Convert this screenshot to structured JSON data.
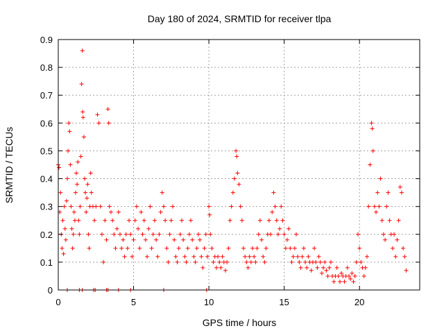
{
  "chart_data": {
    "type": "scatter",
    "title": "Day 180 of 2024, SRMTID for receiver tlpa",
    "xlabel": "GPS time / hours",
    "ylabel": "SRMTID / TECUs",
    "xlim": [
      0,
      24
    ],
    "ylim": [
      0,
      0.9
    ],
    "xticks": [
      0,
      5,
      10,
      15,
      20
    ],
    "yticks": [
      0,
      0.1,
      0.2,
      0.3,
      0.4,
      0.5,
      0.6,
      0.7,
      0.8,
      0.9
    ],
    "grid": true,
    "marker": "+",
    "color": "#ff0000",
    "series": [
      {
        "name": "SRMTID",
        "points": [
          [
            0.0,
            0.45
          ],
          [
            0.05,
            0.44
          ],
          [
            0.1,
            0.28
          ],
          [
            0.15,
            0.35
          ],
          [
            0.2,
            0.2
          ],
          [
            0.25,
            0.15
          ],
          [
            0.3,
            0.25
          ],
          [
            0.35,
            0.13
          ],
          [
            0.4,
            0.3
          ],
          [
            0.45,
            0.22
          ],
          [
            0.5,
            0.18
          ],
          [
            0.55,
            0.32
          ],
          [
            0.6,
            0.4
          ],
          [
            0.65,
            0.5
          ],
          [
            0.7,
            0.6
          ],
          [
            0.75,
            0.57
          ],
          [
            0.8,
            0.45
          ],
          [
            0.85,
            0.3
          ],
          [
            0.9,
            0.22
          ],
          [
            0.95,
            0.15
          ],
          [
            1.0,
            0.2
          ],
          [
            1.05,
            0.28
          ],
          [
            1.1,
            0.25
          ],
          [
            1.15,
            0.35
          ],
          [
            1.2,
            0.42
          ],
          [
            1.25,
            0.38
          ],
          [
            1.3,
            0.46
          ],
          [
            1.35,
            0.25
          ],
          [
            1.4,
            0.2
          ],
          [
            1.45,
            0.3
          ],
          [
            1.5,
            0.48
          ],
          [
            1.55,
            0.74
          ],
          [
            1.6,
            0.86
          ],
          [
            1.62,
            0.64
          ],
          [
            1.65,
            0.62
          ],
          [
            1.7,
            0.55
          ],
          [
            1.75,
            0.4
          ],
          [
            1.8,
            0.35
          ],
          [
            1.85,
            0.28
          ],
          [
            1.9,
            0.33
          ],
          [
            1.95,
            0.38
          ],
          [
            2.0,
            0.2
          ],
          [
            2.05,
            0.15
          ],
          [
            2.1,
            0.3
          ],
          [
            2.15,
            0.42
          ],
          [
            2.2,
            0.35
          ],
          [
            2.3,
            0.3
          ],
          [
            2.4,
            0.25
          ],
          [
            2.5,
            0.3
          ],
          [
            2.6,
            0.63
          ],
          [
            2.7,
            0.6
          ],
          [
            2.8,
            0.3
          ],
          [
            2.9,
            0.2
          ],
          [
            3.0,
            0.1
          ],
          [
            3.1,
            0.25
          ],
          [
            3.2,
            0.18
          ],
          [
            3.3,
            0.65
          ],
          [
            3.35,
            0.6
          ],
          [
            3.4,
            0.3
          ],
          [
            3.5,
            0.28
          ],
          [
            3.6,
            0.25
          ],
          [
            3.7,
            0.2
          ],
          [
            3.8,
            0.15
          ],
          [
            3.9,
            0.22
          ],
          [
            4.0,
            0.28
          ],
          [
            4.1,
            0.2
          ],
          [
            4.2,
            0.15
          ],
          [
            4.3,
            0.18
          ],
          [
            4.4,
            0.12
          ],
          [
            4.5,
            0.2
          ],
          [
            4.6,
            0.15
          ],
          [
            4.7,
            0.25
          ],
          [
            4.8,
            0.2
          ],
          [
            4.9,
            0.12
          ],
          [
            5.0,
            0.18
          ],
          [
            5.1,
            0.25
          ],
          [
            5.2,
            0.3
          ],
          [
            5.3,
            0.22
          ],
          [
            5.4,
            0.15
          ],
          [
            5.5,
            0.28
          ],
          [
            5.6,
            0.2
          ],
          [
            5.7,
            0.25
          ],
          [
            5.8,
            0.18
          ],
          [
            5.9,
            0.12
          ],
          [
            6.0,
            0.22
          ],
          [
            6.1,
            0.3
          ],
          [
            6.2,
            0.15
          ],
          [
            6.3,
            0.2
          ],
          [
            6.4,
            0.25
          ],
          [
            6.5,
            0.18
          ],
          [
            6.6,
            0.12
          ],
          [
            6.7,
            0.2
          ],
          [
            6.8,
            0.28
          ],
          [
            6.9,
            0.35
          ],
          [
            7.0,
            0.3
          ],
          [
            7.1,
            0.25
          ],
          [
            7.2,
            0.15
          ],
          [
            7.3,
            0.1
          ],
          [
            7.4,
            0.2
          ],
          [
            7.5,
            0.25
          ],
          [
            7.6,
            0.3
          ],
          [
            7.7,
            0.18
          ],
          [
            7.8,
            0.12
          ],
          [
            7.9,
            0.1
          ],
          [
            8.0,
            0.15
          ],
          [
            8.1,
            0.2
          ],
          [
            8.2,
            0.25
          ],
          [
            8.3,
            0.18
          ],
          [
            8.4,
            0.12
          ],
          [
            8.5,
            0.1
          ],
          [
            8.6,
            0.15
          ],
          [
            8.7,
            0.2
          ],
          [
            8.8,
            0.25
          ],
          [
            8.9,
            0.18
          ],
          [
            9.0,
            0.12
          ],
          [
            9.1,
            0.1
          ],
          [
            9.2,
            0.15
          ],
          [
            9.3,
            0.2
          ],
          [
            9.4,
            0.18
          ],
          [
            9.5,
            0.12
          ],
          [
            9.6,
            0.08
          ],
          [
            9.7,
            0.15
          ],
          [
            9.8,
            0.2
          ],
          [
            9.9,
            0.12
          ],
          [
            10.0,
            0.3
          ],
          [
            10.05,
            0.27
          ],
          [
            10.1,
            0.2
          ],
          [
            10.2,
            0.15
          ],
          [
            10.3,
            0.1
          ],
          [
            10.4,
            0.12
          ],
          [
            10.5,
            0.08
          ],
          [
            10.6,
            0.12
          ],
          [
            10.7,
            0.1
          ],
          [
            10.8,
            0.08
          ],
          [
            10.9,
            0.12
          ],
          [
            11.0,
            0.1
          ],
          [
            11.1,
            0.07
          ],
          [
            11.2,
            0.1
          ],
          [
            11.3,
            0.15
          ],
          [
            11.4,
            0.25
          ],
          [
            11.5,
            0.3
          ],
          [
            11.6,
            0.35
          ],
          [
            11.7,
            0.4
          ],
          [
            11.8,
            0.5
          ],
          [
            11.85,
            0.48
          ],
          [
            11.9,
            0.42
          ],
          [
            12.0,
            0.38
          ],
          [
            12.1,
            0.3
          ],
          [
            12.2,
            0.25
          ],
          [
            12.3,
            0.15
          ],
          [
            12.4,
            0.12
          ],
          [
            12.5,
            0.1
          ],
          [
            12.6,
            0.08
          ],
          [
            12.7,
            0.12
          ],
          [
            12.8,
            0.1
          ],
          [
            12.9,
            0.15
          ],
          [
            13.0,
            0.12
          ],
          [
            13.1,
            0.1
          ],
          [
            13.2,
            0.15
          ],
          [
            13.3,
            0.2
          ],
          [
            13.4,
            0.25
          ],
          [
            13.5,
            0.18
          ],
          [
            13.6,
            0.12
          ],
          [
            13.7,
            0.1
          ],
          [
            13.8,
            0.15
          ],
          [
            13.9,
            0.2
          ],
          [
            14.0,
            0.25
          ],
          [
            14.1,
            0.2
          ],
          [
            14.2,
            0.28
          ],
          [
            14.3,
            0.35
          ],
          [
            14.4,
            0.3
          ],
          [
            14.5,
            0.25
          ],
          [
            14.6,
            0.2
          ],
          [
            14.7,
            0.22
          ],
          [
            14.8,
            0.3
          ],
          [
            14.9,
            0.25
          ],
          [
            15.0,
            0.2
          ],
          [
            15.1,
            0.15
          ],
          [
            15.2,
            0.18
          ],
          [
            15.3,
            0.22
          ],
          [
            15.4,
            0.15
          ],
          [
            15.5,
            0.1
          ],
          [
            15.6,
            0.12
          ],
          [
            15.7,
            0.15
          ],
          [
            15.8,
            0.2
          ],
          [
            15.9,
            0.12
          ],
          [
            16.0,
            0.1
          ],
          [
            16.1,
            0.08
          ],
          [
            16.2,
            0.12
          ],
          [
            16.3,
            0.15
          ],
          [
            16.4,
            0.1
          ],
          [
            16.5,
            0.08
          ],
          [
            16.6,
            0.12
          ],
          [
            16.7,
            0.1
          ],
          [
            16.8,
            0.07
          ],
          [
            16.9,
            0.1
          ],
          [
            17.0,
            0.15
          ],
          [
            17.1,
            0.1
          ],
          [
            17.2,
            0.08
          ],
          [
            17.3,
            0.12
          ],
          [
            17.4,
            0.1
          ],
          [
            17.5,
            0.06
          ],
          [
            17.6,
            0.08
          ],
          [
            17.7,
            0.1
          ],
          [
            17.8,
            0.07
          ],
          [
            17.9,
            0.05
          ],
          [
            18.0,
            0.08
          ],
          [
            18.1,
            0.1
          ],
          [
            18.2,
            0.05
          ],
          [
            18.3,
            0.03
          ],
          [
            18.4,
            0.05
          ],
          [
            18.5,
            0.08
          ],
          [
            18.6,
            0.05
          ],
          [
            18.7,
            0.03
          ],
          [
            18.8,
            0.06
          ],
          [
            18.9,
            0.05
          ],
          [
            19.0,
            0.03
          ],
          [
            19.1,
            0.05
          ],
          [
            19.2,
            0.08
          ],
          [
            19.3,
            0.05
          ],
          [
            19.4,
            0.04
          ],
          [
            19.5,
            0.06
          ],
          [
            19.6,
            0.03
          ],
          [
            19.7,
            0.05
          ],
          [
            19.8,
            0.1
          ],
          [
            19.9,
            0.2
          ],
          [
            20.0,
            0.15
          ],
          [
            20.1,
            0.1
          ],
          [
            20.2,
            0.08
          ],
          [
            20.3,
            0.05
          ],
          [
            20.4,
            0.08
          ],
          [
            20.5,
            0.12
          ],
          [
            20.6,
            0.3
          ],
          [
            20.7,
            0.45
          ],
          [
            20.8,
            0.6
          ],
          [
            20.85,
            0.58
          ],
          [
            20.9,
            0.5
          ],
          [
            21.0,
            0.3
          ],
          [
            21.1,
            0.28
          ],
          [
            21.2,
            0.35
          ],
          [
            21.3,
            0.3
          ],
          [
            21.4,
            0.4
          ],
          [
            21.5,
            0.25
          ],
          [
            21.6,
            0.2
          ],
          [
            21.7,
            0.18
          ],
          [
            21.8,
            0.3
          ],
          [
            21.9,
            0.35
          ],
          [
            22.0,
            0.25
          ],
          [
            22.1,
            0.2
          ],
          [
            22.2,
            0.15
          ],
          [
            22.3,
            0.2
          ],
          [
            22.4,
            0.12
          ],
          [
            22.5,
            0.18
          ],
          [
            22.6,
            0.25
          ],
          [
            22.7,
            0.37
          ],
          [
            22.8,
            0.35
          ],
          [
            22.9,
            0.15
          ],
          [
            23.0,
            0.12
          ],
          [
            23.1,
            0.07
          ]
        ]
      }
    ],
    "zero_markers_x": [
      0.6,
      1.4,
      1.6,
      2.35,
      2.45,
      3.2,
      3.3,
      4.0,
      4.8,
      7.0,
      9.85
    ]
  }
}
